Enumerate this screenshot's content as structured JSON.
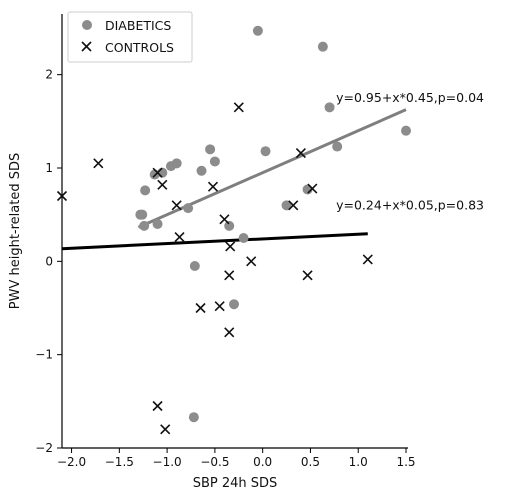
{
  "chart_data": {
    "type": "scatter",
    "xlabel": "SBP 24h SDS",
    "ylabel": "PWV height-related SDS",
    "xlim": [
      -2.1,
      1.5
    ],
    "ylim": [
      -2.0,
      2.65
    ],
    "xticks": [
      -2.0,
      -1.5,
      -1.0,
      -0.5,
      0.0,
      0.5,
      1.0,
      1.5
    ],
    "xtick_labels": [
      "−2.0",
      "−1.5",
      "−1.0",
      "−0.5",
      "0.0",
      "0.5",
      "1.0",
      "1.5"
    ],
    "yticks": [
      -2,
      -1,
      0,
      1,
      2
    ],
    "ytick_labels": [
      "−2",
      "−1",
      "0",
      "1",
      "2"
    ],
    "grid": false,
    "legend_position": "top-left",
    "series": [
      {
        "name": "DIABETICS",
        "marker": "circle",
        "color": "#8c8c8c",
        "points": [
          [
            -0.05,
            2.47
          ],
          [
            0.63,
            2.3
          ],
          [
            0.7,
            1.65
          ],
          [
            1.5,
            1.4
          ],
          [
            0.78,
            1.23
          ],
          [
            0.03,
            1.18
          ],
          [
            -0.55,
            1.2
          ],
          [
            -0.5,
            1.07
          ],
          [
            -0.9,
            1.05
          ],
          [
            -0.96,
            1.02
          ],
          [
            -1.05,
            0.95
          ],
          [
            -0.64,
            0.97
          ],
          [
            -1.13,
            0.93
          ],
          [
            -1.23,
            0.76
          ],
          [
            -0.78,
            0.57
          ],
          [
            -1.28,
            0.5
          ],
          [
            -1.26,
            0.5
          ],
          [
            -1.1,
            0.4
          ],
          [
            -1.24,
            0.38
          ],
          [
            -0.35,
            0.38
          ],
          [
            0.47,
            0.77
          ],
          [
            0.25,
            0.6
          ],
          [
            -0.2,
            0.25
          ],
          [
            -0.71,
            -0.05
          ],
          [
            -0.3,
            -0.46
          ],
          [
            -0.72,
            -1.67
          ]
        ]
      },
      {
        "name": "CONTROLS",
        "marker": "x",
        "color": "#111111",
        "points": [
          [
            -2.1,
            0.7
          ],
          [
            -1.72,
            1.05
          ],
          [
            -1.1,
            0.95
          ],
          [
            -1.05,
            0.82
          ],
          [
            -0.25,
            1.65
          ],
          [
            0.4,
            1.16
          ],
          [
            0.52,
            0.78
          ],
          [
            -0.52,
            0.8
          ],
          [
            -0.9,
            0.6
          ],
          [
            -0.4,
            0.45
          ],
          [
            0.32,
            0.6
          ],
          [
            -0.87,
            0.26
          ],
          [
            -0.34,
            0.16
          ],
          [
            -0.12,
            0.0
          ],
          [
            -0.35,
            -0.15
          ],
          [
            0.47,
            -0.15
          ],
          [
            1.1,
            0.02
          ],
          [
            -0.45,
            -0.48
          ],
          [
            -0.65,
            -0.5
          ],
          [
            -0.35,
            -0.76
          ],
          [
            -1.1,
            -1.55
          ],
          [
            -1.02,
            -1.8
          ]
        ]
      }
    ],
    "fits": [
      {
        "series": "DIABETICS",
        "intercept": 0.95,
        "slope": 0.45,
        "x_range": [
          -1.3,
          1.5
        ],
        "color": "#7f7f7f"
      },
      {
        "series": "CONTROLS",
        "intercept": 0.24,
        "slope": 0.05,
        "x_range": [
          -2.1,
          1.1
        ],
        "color": "#000000"
      }
    ],
    "annotations": [
      {
        "text": "y=0.95+x*0.45,p=0.04",
        "at": [
          0.8,
          1.75
        ]
      },
      {
        "text": "y=0.24+x*0.05,p=0.83",
        "at": [
          0.8,
          0.6
        ]
      }
    ]
  }
}
